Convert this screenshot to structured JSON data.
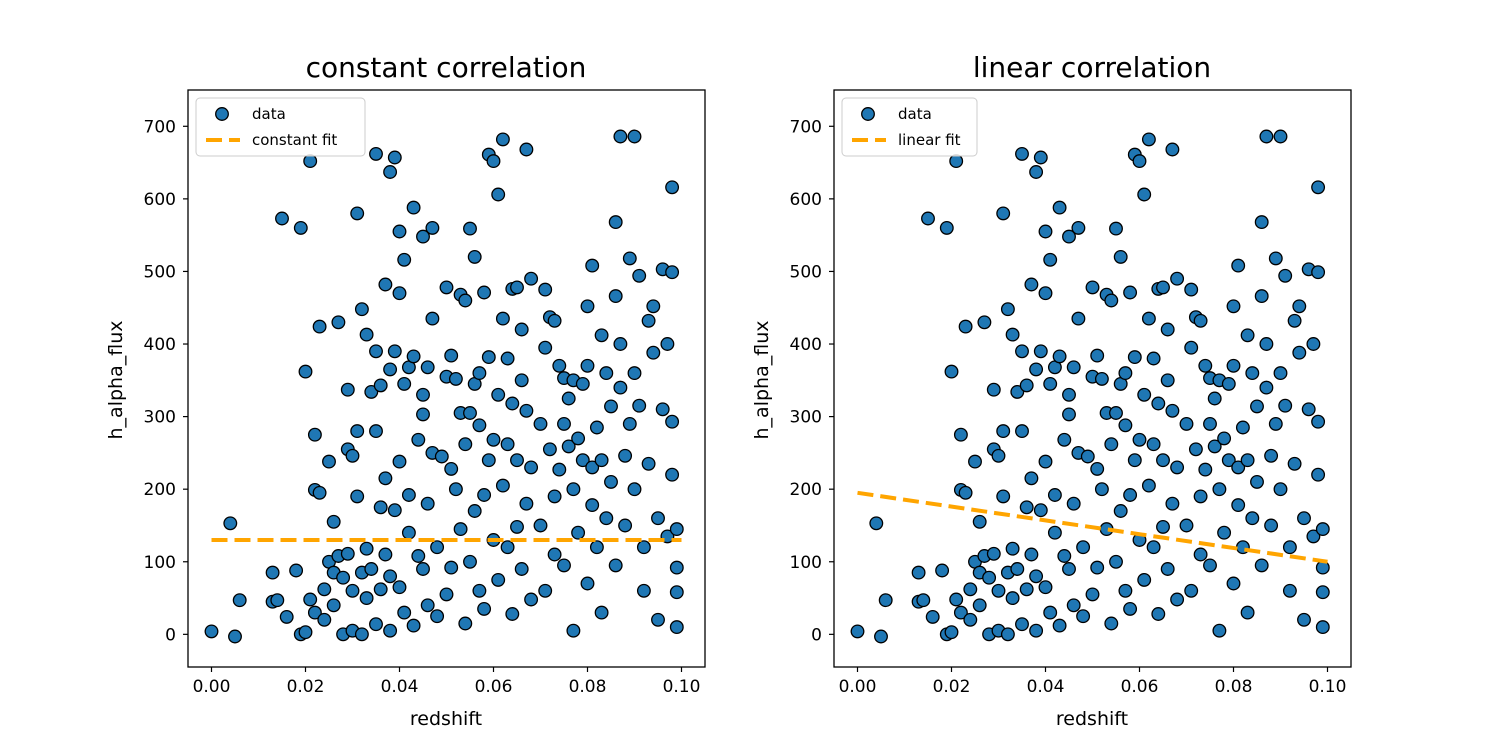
{
  "chart_data": [
    {
      "type": "scatter",
      "title": "constant correlation",
      "xlabel": "redshift",
      "ylabel": "h_alpha_flux",
      "xlim": [
        -0.005,
        0.105
      ],
      "ylim": [
        -45,
        750
      ],
      "xticks": [
        0.0,
        0.02,
        0.04,
        0.06,
        0.08,
        0.1
      ],
      "xtick_labels": [
        "0.00",
        "0.02",
        "0.04",
        "0.06",
        "0.08",
        "0.10"
      ],
      "yticks": [
        0,
        100,
        200,
        300,
        400,
        500,
        600,
        700
      ],
      "ytick_labels": [
        "0",
        "100",
        "200",
        "300",
        "400",
        "500",
        "600",
        "700"
      ],
      "legend": {
        "placement": "upper-left",
        "entries": [
          "data",
          "constant fit"
        ]
      },
      "fit": {
        "name": "constant fit",
        "kind": "constant",
        "x": [
          0.0,
          0.1
        ],
        "y": [
          130,
          130
        ],
        "color": "#ffa500"
      },
      "series_color": "#1f77b4",
      "series_edge_color": "#000000"
    },
    {
      "type": "scatter",
      "title": "linear correlation",
      "xlabel": "redshift",
      "ylabel": "h_alpha_flux",
      "xlim": [
        -0.005,
        0.105
      ],
      "ylim": [
        -45,
        750
      ],
      "xticks": [
        0.0,
        0.02,
        0.04,
        0.06,
        0.08,
        0.1
      ],
      "xtick_labels": [
        "0.00",
        "0.02",
        "0.04",
        "0.06",
        "0.08",
        "0.10"
      ],
      "yticks": [
        0,
        100,
        200,
        300,
        400,
        500,
        600,
        700
      ],
      "ytick_labels": [
        "0",
        "100",
        "200",
        "300",
        "400",
        "500",
        "600",
        "700"
      ],
      "legend": {
        "placement": "upper-left",
        "entries": [
          "data",
          "linear fit"
        ]
      },
      "fit": {
        "name": "linear fit",
        "kind": "linear",
        "x": [
          0.0,
          0.1
        ],
        "y": [
          195,
          100
        ],
        "color": "#ffa500"
      },
      "series_color": "#1f77b4",
      "series_edge_color": "#000000"
    }
  ],
  "points": [
    [
      0.0,
      4
    ],
    [
      0.004,
      153
    ],
    [
      0.005,
      -3
    ],
    [
      0.006,
      47
    ],
    [
      0.013,
      85
    ],
    [
      0.013,
      45
    ],
    [
      0.014,
      47
    ],
    [
      0.015,
      573
    ],
    [
      0.016,
      24
    ],
    [
      0.018,
      88
    ],
    [
      0.019,
      0
    ],
    [
      0.019,
      560
    ],
    [
      0.02,
      362
    ],
    [
      0.02,
      3
    ],
    [
      0.021,
      652
    ],
    [
      0.021,
      48
    ],
    [
      0.022,
      275
    ],
    [
      0.022,
      199
    ],
    [
      0.022,
      30
    ],
    [
      0.023,
      195
    ],
    [
      0.023,
      424
    ],
    [
      0.024,
      62
    ],
    [
      0.024,
      20
    ],
    [
      0.025,
      238
    ],
    [
      0.025,
      100
    ],
    [
      0.026,
      85
    ],
    [
      0.026,
      155
    ],
    [
      0.026,
      40
    ],
    [
      0.027,
      430
    ],
    [
      0.027,
      108
    ],
    [
      0.028,
      0
    ],
    [
      0.028,
      78
    ],
    [
      0.029,
      337
    ],
    [
      0.029,
      255
    ],
    [
      0.029,
      111
    ],
    [
      0.03,
      246
    ],
    [
      0.03,
      5
    ],
    [
      0.03,
      60
    ],
    [
      0.031,
      580
    ],
    [
      0.031,
      190
    ],
    [
      0.031,
      280
    ],
    [
      0.032,
      448
    ],
    [
      0.032,
      85
    ],
    [
      0.032,
      0
    ],
    [
      0.033,
      413
    ],
    [
      0.033,
      118
    ],
    [
      0.033,
      50
    ],
    [
      0.034,
      334
    ],
    [
      0.034,
      90
    ],
    [
      0.035,
      662
    ],
    [
      0.035,
      280
    ],
    [
      0.035,
      390
    ],
    [
      0.035,
      14
    ],
    [
      0.036,
      343
    ],
    [
      0.036,
      62
    ],
    [
      0.036,
      175
    ],
    [
      0.037,
      482
    ],
    [
      0.037,
      215
    ],
    [
      0.037,
      110
    ],
    [
      0.038,
      637
    ],
    [
      0.038,
      365
    ],
    [
      0.038,
      5
    ],
    [
      0.038,
      80
    ],
    [
      0.039,
      657
    ],
    [
      0.039,
      390
    ],
    [
      0.039,
      171
    ],
    [
      0.04,
      470
    ],
    [
      0.04,
      555
    ],
    [
      0.04,
      238
    ],
    [
      0.04,
      65
    ],
    [
      0.041,
      516
    ],
    [
      0.041,
      345
    ],
    [
      0.041,
      30
    ],
    [
      0.042,
      368
    ],
    [
      0.042,
      192
    ],
    [
      0.042,
      140
    ],
    [
      0.043,
      588
    ],
    [
      0.043,
      383
    ],
    [
      0.043,
      12
    ],
    [
      0.044,
      268
    ],
    [
      0.044,
      108
    ],
    [
      0.045,
      548
    ],
    [
      0.045,
      330
    ],
    [
      0.045,
      303
    ],
    [
      0.045,
      90
    ],
    [
      0.046,
      368
    ],
    [
      0.046,
      180
    ],
    [
      0.046,
      40
    ],
    [
      0.047,
      560
    ],
    [
      0.047,
      435
    ],
    [
      0.047,
      250
    ],
    [
      0.048,
      120
    ],
    [
      0.048,
      25
    ],
    [
      0.049,
      245
    ],
    [
      0.05,
      478
    ],
    [
      0.05,
      355
    ],
    [
      0.05,
      55
    ],
    [
      0.051,
      384
    ],
    [
      0.051,
      228
    ],
    [
      0.051,
      92
    ],
    [
      0.052,
      352
    ],
    [
      0.052,
      200
    ],
    [
      0.053,
      468
    ],
    [
      0.053,
      305
    ],
    [
      0.053,
      145
    ],
    [
      0.054,
      460
    ],
    [
      0.054,
      262
    ],
    [
      0.054,
      15
    ],
    [
      0.055,
      559
    ],
    [
      0.055,
      305
    ],
    [
      0.055,
      100
    ],
    [
      0.056,
      520
    ],
    [
      0.056,
      345
    ],
    [
      0.056,
      170
    ],
    [
      0.057,
      360
    ],
    [
      0.057,
      288
    ],
    [
      0.057,
      60
    ],
    [
      0.058,
      471
    ],
    [
      0.058,
      192
    ],
    [
      0.058,
      35
    ],
    [
      0.059,
      661
    ],
    [
      0.059,
      382
    ],
    [
      0.059,
      240
    ],
    [
      0.06,
      652
    ],
    [
      0.06,
      268
    ],
    [
      0.06,
      130
    ],
    [
      0.061,
      606
    ],
    [
      0.061,
      330
    ],
    [
      0.061,
      75
    ],
    [
      0.062,
      682
    ],
    [
      0.062,
      435
    ],
    [
      0.062,
      205
    ],
    [
      0.063,
      380
    ],
    [
      0.063,
      262
    ],
    [
      0.063,
      120
    ],
    [
      0.064,
      476
    ],
    [
      0.064,
      318
    ],
    [
      0.064,
      28
    ],
    [
      0.065,
      478
    ],
    [
      0.065,
      240
    ],
    [
      0.065,
      148
    ],
    [
      0.066,
      420
    ],
    [
      0.066,
      350
    ],
    [
      0.066,
      90
    ],
    [
      0.067,
      668
    ],
    [
      0.067,
      308
    ],
    [
      0.067,
      180
    ],
    [
      0.068,
      490
    ],
    [
      0.068,
      230
    ],
    [
      0.068,
      48
    ],
    [
      0.07,
      290
    ],
    [
      0.07,
      150
    ],
    [
      0.071,
      475
    ],
    [
      0.071,
      395
    ],
    [
      0.071,
      60
    ],
    [
      0.072,
      437
    ],
    [
      0.072,
      255
    ],
    [
      0.073,
      432
    ],
    [
      0.073,
      190
    ],
    [
      0.073,
      110
    ],
    [
      0.074,
      370
    ],
    [
      0.074,
      227
    ],
    [
      0.075,
      353
    ],
    [
      0.075,
      290
    ],
    [
      0.075,
      95
    ],
    [
      0.076,
      325
    ],
    [
      0.076,
      259
    ],
    [
      0.077,
      350
    ],
    [
      0.077,
      200
    ],
    [
      0.077,
      5
    ],
    [
      0.078,
      270
    ],
    [
      0.078,
      140
    ],
    [
      0.079,
      345
    ],
    [
      0.079,
      240
    ],
    [
      0.08,
      452
    ],
    [
      0.08,
      370
    ],
    [
      0.08,
      70
    ],
    [
      0.081,
      508
    ],
    [
      0.081,
      230
    ],
    [
      0.081,
      178
    ],
    [
      0.082,
      285
    ],
    [
      0.082,
      120
    ],
    [
      0.083,
      412
    ],
    [
      0.083,
      240
    ],
    [
      0.083,
      30
    ],
    [
      0.084,
      360
    ],
    [
      0.084,
      160
    ],
    [
      0.085,
      314
    ],
    [
      0.085,
      210
    ],
    [
      0.086,
      568
    ],
    [
      0.086,
      466
    ],
    [
      0.086,
      95
    ],
    [
      0.087,
      686
    ],
    [
      0.087,
      400
    ],
    [
      0.087,
      340
    ],
    [
      0.088,
      246
    ],
    [
      0.088,
      150
    ],
    [
      0.089,
      518
    ],
    [
      0.089,
      290
    ],
    [
      0.09,
      686
    ],
    [
      0.09,
      360
    ],
    [
      0.09,
      200
    ],
    [
      0.091,
      494
    ],
    [
      0.091,
      315
    ],
    [
      0.092,
      120
    ],
    [
      0.092,
      60
    ],
    [
      0.093,
      432
    ],
    [
      0.093,
      235
    ],
    [
      0.094,
      452
    ],
    [
      0.094,
      388
    ],
    [
      0.095,
      160
    ],
    [
      0.095,
      20
    ],
    [
      0.096,
      310
    ],
    [
      0.096,
      503
    ],
    [
      0.097,
      400
    ],
    [
      0.097,
      135
    ],
    [
      0.098,
      616
    ],
    [
      0.098,
      499
    ],
    [
      0.098,
      293
    ],
    [
      0.098,
      220
    ],
    [
      0.099,
      145
    ],
    [
      0.099,
      92
    ],
    [
      0.099,
      58
    ],
    [
      0.099,
      10
    ]
  ]
}
